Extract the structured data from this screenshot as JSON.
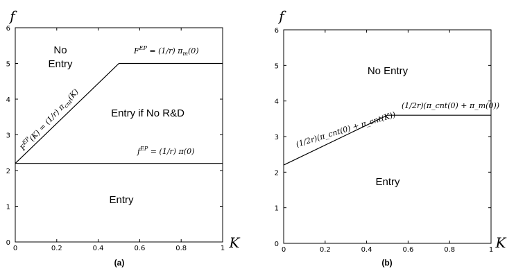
{
  "chart_data": [
    {
      "type": "line",
      "panel_label": "(a)",
      "xlabel": "K",
      "ylabel": "f",
      "xlim": [
        0,
        1
      ],
      "ylim": [
        0,
        6
      ],
      "xticks": [
        "0",
        "0.2",
        "0.4",
        "0.6",
        "0.8",
        "1"
      ],
      "yticks": [
        "0",
        "1",
        "2",
        "3",
        "4",
        "5",
        "6"
      ],
      "series": [
        {
          "x": [
            0,
            0.5,
            1
          ],
          "y": [
            2.2,
            5.0,
            5.0
          ]
        },
        {
          "x": [
            0,
            1
          ],
          "y": [
            2.2,
            2.2
          ]
        }
      ],
      "annotations": {
        "no_entry_1": "No",
        "no_entry_2": "Entry",
        "entry_if_no_rd": "Entry if No R&D",
        "entry": "Entry",
        "upper_eq": {
          "lhs": "F",
          "sup": "EP",
          "rest": " = (1/r) π",
          "sub": "m",
          "arg": "(0)"
        },
        "diag_eq": {
          "lhs": "F",
          "sup": "EP",
          "rest": "(K) = (1/r) π",
          "sub": "cnt",
          "arg": "(K)"
        },
        "lower_eq": {
          "lhs": "f",
          "sup": "EP",
          "rest": " = (1/r) π(0)"
        }
      }
    },
    {
      "type": "line",
      "panel_label": "(b)",
      "xlabel": "K",
      "ylabel": "f",
      "xlim": [
        0,
        1
      ],
      "ylim": [
        0,
        6
      ],
      "xticks": [
        "0",
        "0.2",
        "0.4",
        "0.6",
        "0.8",
        "1"
      ],
      "yticks": [
        "0",
        "1",
        "2",
        "3",
        "4",
        "5",
        "6"
      ],
      "series": [
        {
          "x": [
            0,
            0.5,
            1
          ],
          "y": [
            2.2,
            3.6,
            3.6
          ]
        }
      ],
      "annotations": {
        "no_entry": "No Entry",
        "entry": "Entry",
        "upper_eq": "(1/2r)(π_cnt(0) + π_m(0))",
        "diag_eq": "(1/2r)(π_cnt(0) + π_cnt(K))"
      }
    }
  ]
}
